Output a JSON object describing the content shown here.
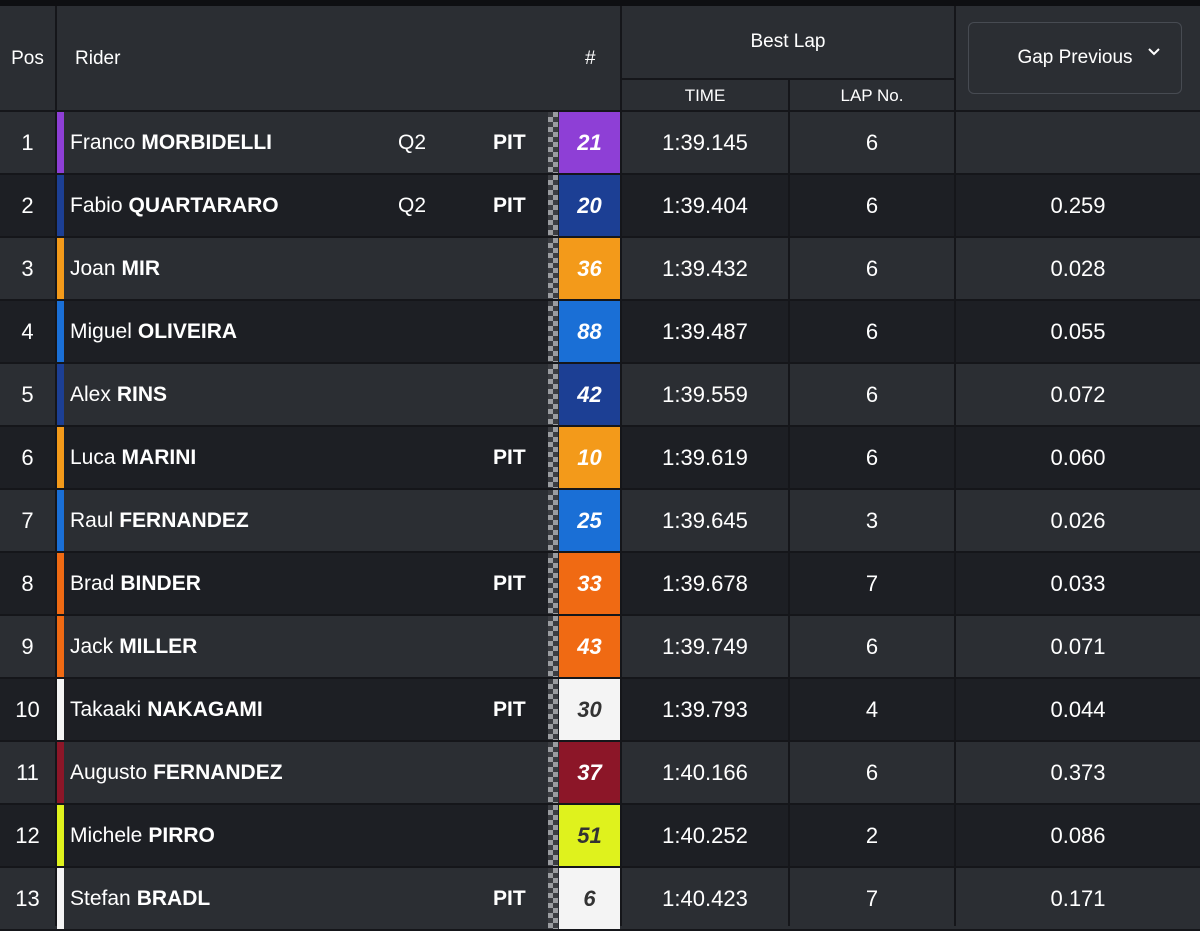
{
  "header": {
    "pos": "Pos",
    "rider": "Rider",
    "number": "#",
    "best_lap": "Best Lap",
    "time": "TIME",
    "lap_no": "LAP No.",
    "gap_select": "Gap Previous"
  },
  "rows": [
    {
      "pos": "1",
      "first": "Franco",
      "last": "MORBIDELLI",
      "q2": "Q2",
      "pit": "PIT",
      "number": "21",
      "time": "1:39.145",
      "lap": "6",
      "gap": "",
      "color": "#8e3fd6",
      "num_text": "#ffffff"
    },
    {
      "pos": "2",
      "first": "Fabio",
      "last": "QUARTARARO",
      "q2": "Q2",
      "pit": "PIT",
      "number": "20",
      "time": "1:39.404",
      "lap": "6",
      "gap": "0.259",
      "color": "#1c3f94",
      "num_text": "#ffffff"
    },
    {
      "pos": "3",
      "first": "Joan",
      "last": "MIR",
      "q2": "",
      "pit": "",
      "number": "36",
      "time": "1:39.432",
      "lap": "6",
      "gap": "0.028",
      "color": "#f39a1a",
      "num_text": "#ffffff"
    },
    {
      "pos": "4",
      "first": "Miguel",
      "last": "OLIVEIRA",
      "q2": "",
      "pit": "",
      "number": "88",
      "time": "1:39.487",
      "lap": "6",
      "gap": "0.055",
      "color": "#1a6fd6",
      "num_text": "#ffffff"
    },
    {
      "pos": "5",
      "first": "Alex",
      "last": "RINS",
      "q2": "",
      "pit": "",
      "number": "42",
      "time": "1:39.559",
      "lap": "6",
      "gap": "0.072",
      "color": "#1c3f94",
      "num_text": "#ffffff"
    },
    {
      "pos": "6",
      "first": "Luca",
      "last": "MARINI",
      "q2": "",
      "pit": "PIT",
      "number": "10",
      "time": "1:39.619",
      "lap": "6",
      "gap": "0.060",
      "color": "#f39a1a",
      "num_text": "#ffffff"
    },
    {
      "pos": "7",
      "first": "Raul",
      "last": "FERNANDEZ",
      "q2": "",
      "pit": "",
      "number": "25",
      "time": "1:39.645",
      "lap": "3",
      "gap": "0.026",
      "color": "#1a6fd6",
      "num_text": "#ffffff"
    },
    {
      "pos": "8",
      "first": "Brad",
      "last": "BINDER",
      "q2": "",
      "pit": "PIT",
      "number": "33",
      "time": "1:39.678",
      "lap": "7",
      "gap": "0.033",
      "color": "#f06a13",
      "num_text": "#ffffff"
    },
    {
      "pos": "9",
      "first": "Jack",
      "last": "MILLER",
      "q2": "",
      "pit": "",
      "number": "43",
      "time": "1:39.749",
      "lap": "6",
      "gap": "0.071",
      "color": "#f06a13",
      "num_text": "#ffffff"
    },
    {
      "pos": "10",
      "first": "Takaaki",
      "last": "NAKAGAMI",
      "q2": "",
      "pit": "PIT",
      "number": "30",
      "time": "1:39.793",
      "lap": "4",
      "gap": "0.044",
      "color": "#f4f4f4",
      "num_text": "#333333"
    },
    {
      "pos": "11",
      "first": "Augusto",
      "last": "FERNANDEZ",
      "q2": "",
      "pit": "",
      "number": "37",
      "time": "1:40.166",
      "lap": "6",
      "gap": "0.373",
      "color": "#8c1628",
      "num_text": "#ffffff"
    },
    {
      "pos": "12",
      "first": "Michele",
      "last": "PIRRO",
      "q2": "",
      "pit": "",
      "number": "51",
      "time": "1:40.252",
      "lap": "2",
      "gap": "0.086",
      "color": "#dff21d",
      "num_text": "#333333"
    },
    {
      "pos": "13",
      "first": "Stefan",
      "last": "BRADL",
      "q2": "",
      "pit": "PIT",
      "number": "6",
      "time": "1:40.423",
      "lap": "7",
      "gap": "0.171",
      "color": "#f4f4f4",
      "num_text": "#333333"
    }
  ]
}
